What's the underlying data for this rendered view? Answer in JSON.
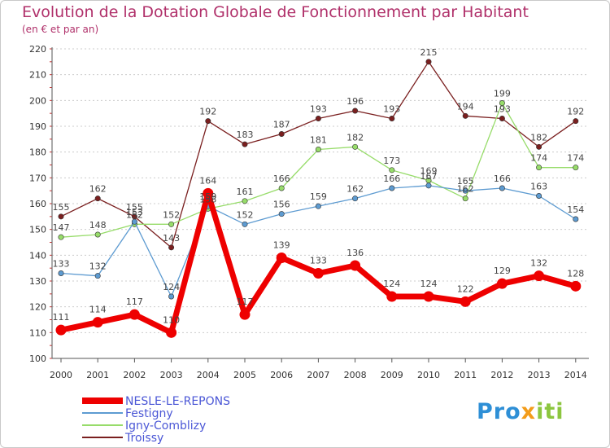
{
  "title": "Evolution de la Dotation Globale de Fonctionnement par Habitant",
  "subtitle": "(en € et par an)",
  "logo": {
    "text": "Proxiti",
    "part1": "Pro",
    "part2": "x",
    "part3": "iti"
  },
  "colors": {
    "title": "#b0306a",
    "nesle": "#ee0000",
    "festigny": "#5d9bd1",
    "igny": "#97dc6a",
    "troissy": "#7a1f1f",
    "grid": "#cccccc"
  },
  "chart_data": {
    "type": "line",
    "title": "Evolution de la Dotation Globale de Fonctionnement par Habitant",
    "subtitle": "(en € et par an)",
    "xlabel": "",
    "ylabel": "",
    "categories": [
      "2000",
      "2001",
      "2002",
      "2003",
      "2004",
      "2005",
      "2006",
      "2007",
      "2008",
      "2009",
      "2010",
      "2011",
      "2012",
      "2013",
      "2014"
    ],
    "ylim": [
      100,
      220
    ],
    "yticks": [
      100,
      110,
      120,
      130,
      140,
      150,
      160,
      170,
      180,
      190,
      200,
      210,
      220
    ],
    "grid": "horizontal",
    "legend_position": "bottom-left",
    "series": [
      {
        "name": "NESLE-LE-REPONS",
        "color": "#ee0000",
        "values": [
          111,
          114,
          117,
          110,
          164,
          117,
          139,
          133,
          136,
          124,
          124,
          122,
          129,
          132,
          128
        ]
      },
      {
        "name": "Festigny",
        "color": "#5d9bd1",
        "values": [
          133,
          132,
          153,
          124,
          159,
          152,
          156,
          159,
          162,
          166,
          167,
          165,
          166,
          163,
          154
        ]
      },
      {
        "name": "Igny-Comblizy",
        "color": "#97dc6a",
        "values": [
          147,
          148,
          152,
          152,
          158,
          161,
          166,
          181,
          182,
          173,
          169,
          162,
          199,
          174,
          174
        ]
      },
      {
        "name": "Troissy",
        "color": "#7a1f1f",
        "values": [
          155,
          162,
          155,
          143,
          192,
          183,
          187,
          193,
          196,
          193,
          215,
          194,
          193,
          182,
          192
        ]
      }
    ]
  }
}
